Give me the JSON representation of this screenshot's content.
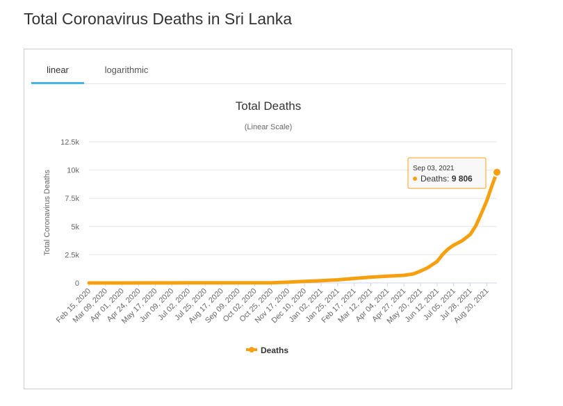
{
  "page": {
    "title": "Total Coronavirus Deaths in Sri Lanka"
  },
  "tabs": [
    {
      "label": "linear",
      "active": true
    },
    {
      "label": "logarithmic",
      "active": false
    }
  ],
  "colors": {
    "series": "#f7a00f",
    "tab_active": "#44b3e8",
    "grid": "#e6e6e6"
  },
  "tooltip": {
    "date": "Sep 03, 2021",
    "series": "Deaths",
    "value": "9 806"
  },
  "chart_data": {
    "type": "line",
    "title": "Total Deaths",
    "subtitle": "(Linear Scale)",
    "ylabel": "Total Coronavirus Deaths",
    "xlabel": "",
    "ylim": [
      0,
      12500
    ],
    "yticks": [
      {
        "value": 0,
        "label": "0"
      },
      {
        "value": 2500,
        "label": "2.5k"
      },
      {
        "value": 5000,
        "label": "5k"
      },
      {
        "value": 7500,
        "label": "7.5k"
      },
      {
        "value": 10000,
        "label": "10k"
      },
      {
        "value": 12500,
        "label": "12.5k"
      }
    ],
    "grid": true,
    "legend": "bottom-center",
    "xlim": [
      "2020-02-15",
      "2021-09-03"
    ],
    "xtick_labels": [
      {
        "date": "2020-02-15",
        "label": "Feb 15, 2020"
      },
      {
        "date": "2020-03-09",
        "label": "Mar 09, 2020"
      },
      {
        "date": "2020-04-01",
        "label": "Apr 01, 2020"
      },
      {
        "date": "2020-04-24",
        "label": "Apr 24, 2020"
      },
      {
        "date": "2020-05-17",
        "label": "May 17, 2020"
      },
      {
        "date": "2020-06-09",
        "label": "Jun 09, 2020"
      },
      {
        "date": "2020-07-02",
        "label": "Jul 02, 2020"
      },
      {
        "date": "2020-07-25",
        "label": "Jul 25, 2020"
      },
      {
        "date": "2020-08-17",
        "label": "Aug 17, 2020"
      },
      {
        "date": "2020-09-09",
        "label": "Sep 09, 2020"
      },
      {
        "date": "2020-10-02",
        "label": "Oct 02, 2020"
      },
      {
        "date": "2020-10-25",
        "label": "Oct 25, 2020"
      },
      {
        "date": "2020-11-17",
        "label": "Nov 17, 2020"
      },
      {
        "date": "2020-12-10",
        "label": "Dec 10, 2020"
      },
      {
        "date": "2021-01-02",
        "label": "Jan 02, 2021"
      },
      {
        "date": "2021-01-25",
        "label": "Jan 25, 2021"
      },
      {
        "date": "2021-02-17",
        "label": "Feb 17, 2021"
      },
      {
        "date": "2021-03-12",
        "label": "Mar 12, 2021"
      },
      {
        "date": "2021-04-04",
        "label": "Apr 04, 2021"
      },
      {
        "date": "2021-04-27",
        "label": "Apr 27, 2021"
      },
      {
        "date": "2021-05-20",
        "label": "May 20, 2021"
      },
      {
        "date": "2021-06-12",
        "label": "Jun 12, 2021"
      },
      {
        "date": "2021-07-05",
        "label": "Jul 05, 2021"
      },
      {
        "date": "2021-07-28",
        "label": "Jul 28, 2021"
      },
      {
        "date": "2021-08-20",
        "label": "Aug 20, 2021"
      }
    ],
    "series": [
      {
        "name": "Deaths",
        "points": [
          {
            "x": "2020-02-15",
            "y": 0
          },
          {
            "x": "2020-03-09",
            "y": 0
          },
          {
            "x": "2020-04-01",
            "y": 3
          },
          {
            "x": "2020-05-17",
            "y": 9
          },
          {
            "x": "2020-07-02",
            "y": 11
          },
          {
            "x": "2020-09-09",
            "y": 12
          },
          {
            "x": "2020-10-25",
            "y": 19
          },
          {
            "x": "2020-11-17",
            "y": 70
          },
          {
            "x": "2020-12-10",
            "y": 140
          },
          {
            "x": "2021-01-02",
            "y": 200
          },
          {
            "x": "2021-01-25",
            "y": 280
          },
          {
            "x": "2021-02-17",
            "y": 400
          },
          {
            "x": "2021-03-12",
            "y": 520
          },
          {
            "x": "2021-04-04",
            "y": 600
          },
          {
            "x": "2021-04-27",
            "y": 680
          },
          {
            "x": "2021-05-10",
            "y": 800
          },
          {
            "x": "2021-05-20",
            "y": 1050
          },
          {
            "x": "2021-05-30",
            "y": 1350
          },
          {
            "x": "2021-06-12",
            "y": 1900
          },
          {
            "x": "2021-06-20",
            "y": 2550
          },
          {
            "x": "2021-06-27",
            "y": 3000
          },
          {
            "x": "2021-07-05",
            "y": 3350
          },
          {
            "x": "2021-07-17",
            "y": 3750
          },
          {
            "x": "2021-07-28",
            "y": 4300
          },
          {
            "x": "2021-08-05",
            "y": 5100
          },
          {
            "x": "2021-08-12",
            "y": 6100
          },
          {
            "x": "2021-08-20",
            "y": 7300
          },
          {
            "x": "2021-08-27",
            "y": 8600
          },
          {
            "x": "2021-09-03",
            "y": 9806
          }
        ]
      }
    ]
  }
}
